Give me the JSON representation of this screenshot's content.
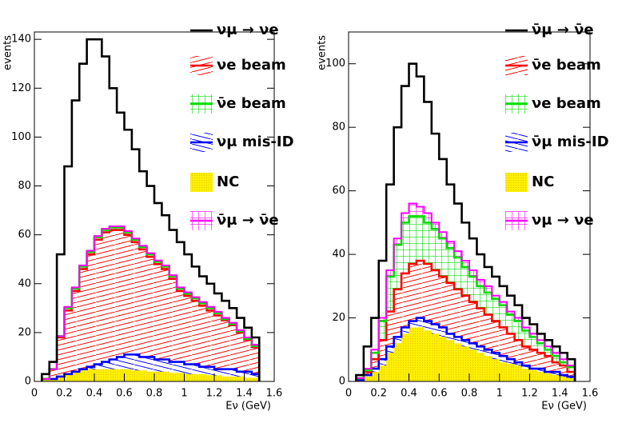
{
  "chart_data": [
    {
      "type": "histogram",
      "x_label": "Eν (GeV)",
      "y_label": "events",
      "xlim": [
        0,
        1.6
      ],
      "ylim": [
        0,
        143
      ],
      "xticks": [
        0,
        0.2,
        0.4,
        0.6,
        0.8,
        1,
        1.2,
        1.4,
        1.6
      ],
      "yticks": [
        0,
        20,
        40,
        60,
        80,
        100,
        120,
        140
      ],
      "bins": [
        0.05,
        0.1,
        0.15,
        0.2,
        0.25,
        0.3,
        0.35,
        0.4,
        0.45,
        0.5,
        0.55,
        0.6,
        0.65,
        0.7,
        0.75,
        0.8,
        0.85,
        0.9,
        0.95,
        1,
        1.05,
        1.1,
        1.15,
        1.2,
        1.25,
        1.3,
        1.35,
        1.4,
        1.45,
        1.5
      ],
      "series": [
        {
          "name": "νμ → νe",
          "color": "#000000",
          "fill": "none",
          "values": [
            2,
            3,
            33.5,
            57.5,
            76.5,
            82.5,
            86.5,
            80.5,
            70.5,
            56.5,
            46.5,
            41.5,
            36.5,
            30.5,
            27.5,
            23.5,
            20.5,
            18.5,
            18.5,
            15.5,
            12.5,
            10.5,
            9.5,
            7.5,
            7,
            6,
            5,
            4,
            3
          ]
        },
        {
          "name": "νe beam",
          "color": "#ff0000",
          "fill": "hatch-up",
          "values": [
            0,
            4,
            16,
            26,
            33,
            41,
            46,
            51,
            53,
            53,
            52,
            49,
            46,
            44,
            41,
            39,
            37,
            34,
            29,
            28,
            26,
            25,
            23,
            22,
            20,
            18,
            16,
            13,
            11
          ]
        },
        {
          "name": "ν̄e beam",
          "color": "#00dd00",
          "fill": "crosshatch",
          "values": [
            0,
            0,
            0.5,
            1,
            1,
            1,
            1,
            1,
            1,
            1,
            1,
            1,
            1,
            1,
            1,
            1,
            1,
            1,
            1,
            1,
            1,
            1,
            1,
            1,
            0.5,
            0.5,
            0.5,
            0.5,
            0.5
          ]
        },
        {
          "name": "νμ mis-ID",
          "color": "#0000ff",
          "fill": "hatch-down",
          "values": [
            0,
            0,
            0,
            0,
            0,
            0.5,
            1,
            2,
            3,
            4,
            5,
            6,
            6.5,
            5.5,
            6,
            5,
            5,
            4.5,
            4.5,
            4,
            4,
            3,
            3.5,
            2.5,
            3,
            3,
            2,
            2.5,
            1.5
          ]
        },
        {
          "name": "NC",
          "color": "#ffee00",
          "fill": "dots",
          "values": [
            1,
            1,
            2,
            3,
            4,
            4.5,
            5,
            5,
            5,
            5,
            5,
            5,
            4.5,
            4.5,
            4,
            4,
            4,
            3.5,
            3.5,
            3,
            3,
            3,
            2.5,
            2.5,
            2,
            2,
            2,
            1.5,
            1.5
          ]
        },
        {
          "name": "ν̄μ → ν̄e",
          "color": "#ff00ff",
          "fill": "crosshatch",
          "values": [
            0,
            0,
            0,
            0.5,
            0.5,
            0.5,
            0.5,
            0.5,
            0.5,
            0.5,
            0.5,
            0.5,
            0.5,
            0.5,
            0.5,
            0.5,
            0.5,
            0.5,
            0.5,
            0.5,
            0.5,
            0.5,
            0.5,
            0.5,
            0.5,
            0.5,
            0.5,
            0.5,
            0.5
          ]
        }
      ]
    },
    {
      "type": "histogram",
      "x_label": "Eν (GeV)",
      "y_label": "events",
      "xlim": [
        0,
        1.6
      ],
      "ylim": [
        0,
        110
      ],
      "xticks": [
        0,
        0.2,
        0.4,
        0.6,
        0.8,
        1,
        1.2,
        1.4,
        1.6
      ],
      "yticks": [
        0,
        20,
        40,
        60,
        80,
        100
      ],
      "bins": [
        0.05,
        0.1,
        0.15,
        0.2,
        0.25,
        0.3,
        0.35,
        0.4,
        0.45,
        0.5,
        0.55,
        0.6,
        0.65,
        0.7,
        0.75,
        0.8,
        0.85,
        0.9,
        0.95,
        1,
        1.05,
        1.1,
        1.15,
        1.2,
        1.25,
        1.3,
        1.35,
        1.4,
        1.45,
        1.5
      ],
      "series": [
        {
          "name": "ν̄μ → ν̄e",
          "color": "#000000",
          "fill": "none",
          "values": [
            1,
            7,
            10,
            18,
            27,
            35,
            40,
            44,
            41,
            35,
            28,
            23,
            18,
            15,
            12,
            10,
            8,
            6,
            6,
            5,
            5,
            4,
            3,
            3,
            2,
            2,
            2,
            2,
            2
          ]
        },
        {
          "name": "ν̄e beam",
          "color": "#ff0000",
          "fill": "hatch-up",
          "values": [
            0.5,
            1,
            3,
            6,
            11,
            15,
            17,
            18,
            18,
            18,
            17,
            16,
            16,
            15,
            14,
            13,
            12,
            11,
            10,
            9,
            8,
            7,
            6,
            6,
            5,
            5,
            3,
            3,
            1.5
          ]
        },
        {
          "name": "νe beam",
          "color": "#00dd00",
          "fill": "crosshatch",
          "values": [
            0,
            0.5,
            2,
            6,
            11,
            14,
            16,
            15,
            14,
            13,
            13,
            12,
            11,
            10,
            9,
            8,
            7,
            7,
            7,
            7,
            6,
            6,
            5,
            4,
            3,
            2,
            2,
            1,
            1.5
          ]
        },
        {
          "name": "ν̄μ mis-ID",
          "color": "#0000ff",
          "fill": "hatch-down",
          "values": [
            0,
            0.5,
            1,
            2,
            2,
            2,
            2,
            2,
            3,
            3,
            3,
            3,
            2,
            2,
            2,
            2,
            2,
            2,
            2,
            2,
            1.5,
            1,
            1,
            0.5,
            1,
            0.5,
            1,
            0.5,
            0.5
          ]
        },
        {
          "name": "NC",
          "color": "#ffee00",
          "fill": "dots",
          "values": [
            0.5,
            1.5,
            3,
            5,
            9,
            12,
            15,
            17,
            17,
            16,
            15,
            14,
            13,
            12,
            11,
            10,
            9,
            8,
            7,
            6,
            5.5,
            5,
            4,
            3.5,
            3,
            2.5,
            2,
            1.5,
            1
          ]
        },
        {
          "name": "νμ → νe",
          "color": "#ff00ff",
          "fill": "crosshatch",
          "values": [
            0,
            0.5,
            1,
            1,
            2,
            2,
            3,
            4,
            3,
            3,
            2,
            2,
            2,
            2,
            2,
            2,
            2,
            2,
            1,
            1,
            1,
            1,
            1,
            1,
            1,
            1,
            1,
            1,
            0.5
          ]
        }
      ]
    }
  ]
}
